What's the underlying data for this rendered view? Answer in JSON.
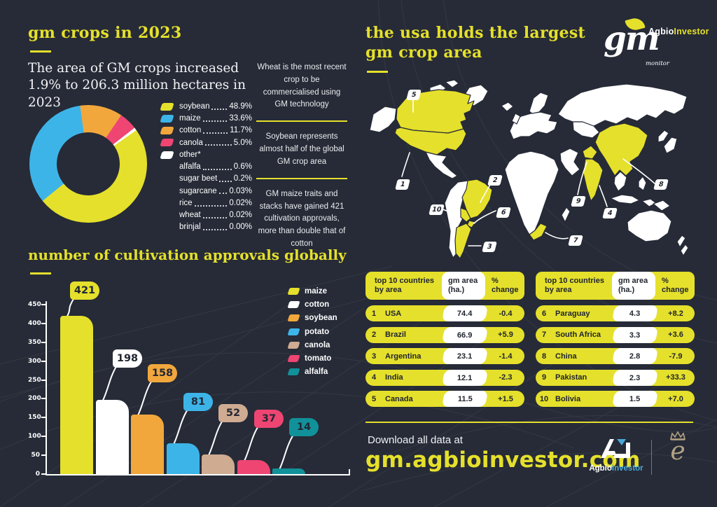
{
  "theme": {
    "bg": "#262b37",
    "yellow": "#e5e02b",
    "blue": "#3db4e8",
    "orange": "#f2a73c",
    "pink": "#ee4572",
    "tan": "#cfab92",
    "teal": "#11919a",
    "white": "#ffffff"
  },
  "left": {
    "title": "gm crops in 2023",
    "intro": "The area of GM crops increased 1.9% to 206.3 million hectares in 2023",
    "donut_legend_main": [
      {
        "label": "soybean",
        "value": "48.9%",
        "color": "#e5e02b"
      },
      {
        "label": "maize",
        "value": "33.6%",
        "color": "#3db4e8"
      },
      {
        "label": "cotton",
        "value": "11.7%",
        "color": "#f2a73c"
      },
      {
        "label": "canola",
        "value": "5.0%",
        "color": "#ee4572"
      },
      {
        "label": "other*",
        "value": "",
        "color": "#ffffff"
      }
    ],
    "donut_legend_sub": [
      {
        "label": "alfalfa",
        "value": "0.6%"
      },
      {
        "label": "sugar beet",
        "value": "0.2%"
      },
      {
        "label": "sugarcane",
        "value": "0.03%"
      },
      {
        "label": "rice",
        "value": "0.02%"
      },
      {
        "label": "wheat",
        "value": "0.02%"
      },
      {
        "label": "brinjal",
        "value": "0.00%"
      }
    ],
    "facts": [
      "Wheat is the most recent crop to be commercialised using GM technology",
      "Soybean represents almost half of the global GM crop area",
      "GM maize traits and stacks have gained 421 cultivation approvals, more than double that of cotton"
    ],
    "bar_title": "number of cultivation approvals globally"
  },
  "chart_data": [
    {
      "type": "pie",
      "title": "gm crops in 2023 — share of GM crop area",
      "labels": [
        "soybean",
        "maize",
        "cotton",
        "canola",
        "other"
      ],
      "values": [
        48.9,
        33.6,
        11.7,
        5.0,
        0.9
      ],
      "colors": [
        "#e5e02b",
        "#3db4e8",
        "#f2a73c",
        "#ee4572",
        "#ffffff"
      ],
      "other_breakdown": {
        "alfalfa": "0.6%",
        "sugar beet": "0.2%",
        "sugarcane": "0.03%",
        "rice": "0.02%",
        "wheat": "0.02%",
        "brinjal": "0.00%"
      },
      "donut": true
    },
    {
      "type": "bar",
      "title": "number of cultivation approvals globally",
      "categories": [
        "maize",
        "cotton",
        "soybean",
        "potato",
        "canola",
        "tomato",
        "alfalfa"
      ],
      "values": [
        421,
        198,
        158,
        81,
        52,
        37,
        14
      ],
      "colors": [
        "#e5e02b",
        "#ffffff",
        "#f2a73c",
        "#3db4e8",
        "#cfab92",
        "#ee4572",
        "#11919a"
      ],
      "ylim": [
        0,
        450
      ],
      "yticks": [
        0,
        50,
        100,
        150,
        200,
        250,
        300,
        350,
        400,
        450
      ],
      "legend_position": "upper right",
      "grid": false
    }
  ],
  "right": {
    "title_line1": "the usa holds the largest",
    "title_line2": "gm crop area",
    "logo": {
      "word": "gm",
      "monitor": "monitor",
      "brand_white": "Agbio",
      "brand_yellow": "Investor"
    },
    "map_markers": [
      {
        "num": "1",
        "country": "USA"
      },
      {
        "num": "2",
        "country": "Brazil"
      },
      {
        "num": "3",
        "country": "Argentina"
      },
      {
        "num": "4",
        "country": "India"
      },
      {
        "num": "5",
        "country": "Canada"
      },
      {
        "num": "6",
        "country": "Paraguay"
      },
      {
        "num": "7",
        "country": "South Africa"
      },
      {
        "num": "8",
        "country": "China"
      },
      {
        "num": "9",
        "country": "Pakistan"
      },
      {
        "num": "10",
        "country": "Bolivia"
      }
    ],
    "tables": [
      {
        "headers": [
          "top 10 countries by area",
          "gm area (ha.)",
          "% change"
        ],
        "rows": [
          {
            "rank": "1",
            "country": "USA",
            "area": "74.4",
            "change": "-0.4"
          },
          {
            "rank": "2",
            "country": "Brazil",
            "area": "66.9",
            "change": "+5.9"
          },
          {
            "rank": "3",
            "country": "Argentina",
            "area": "23.1",
            "change": "-1.4"
          },
          {
            "rank": "4",
            "country": "India",
            "area": "12.1",
            "change": "-2.3"
          },
          {
            "rank": "5",
            "country": "Canada",
            "area": "11.5",
            "change": "+1.5"
          }
        ]
      },
      {
        "headers": [
          "top 10 countries by area",
          "gm area (ha.)",
          "% change"
        ],
        "rows": [
          {
            "rank": "6",
            "country": "Paraguay",
            "area": "4.3",
            "change": "+8.2"
          },
          {
            "rank": "7",
            "country": "South Africa",
            "area": "3.3",
            "change": "+3.6"
          },
          {
            "rank": "8",
            "country": "China",
            "area": "2.8",
            "change": "-7.9"
          },
          {
            "rank": "9",
            "country": "Pakistan",
            "area": "2.3",
            "change": "+33.3"
          },
          {
            "rank": "10",
            "country": "Bolivia",
            "area": "1.5",
            "change": "+7.0"
          }
        ]
      }
    ],
    "footer": {
      "download_label": "Download all data at",
      "url": "gm.agbioinvestor.com",
      "brand_white": "Agbio",
      "brand_blue": "Investor",
      "brand_blue_color": "#4aa8d8"
    }
  }
}
